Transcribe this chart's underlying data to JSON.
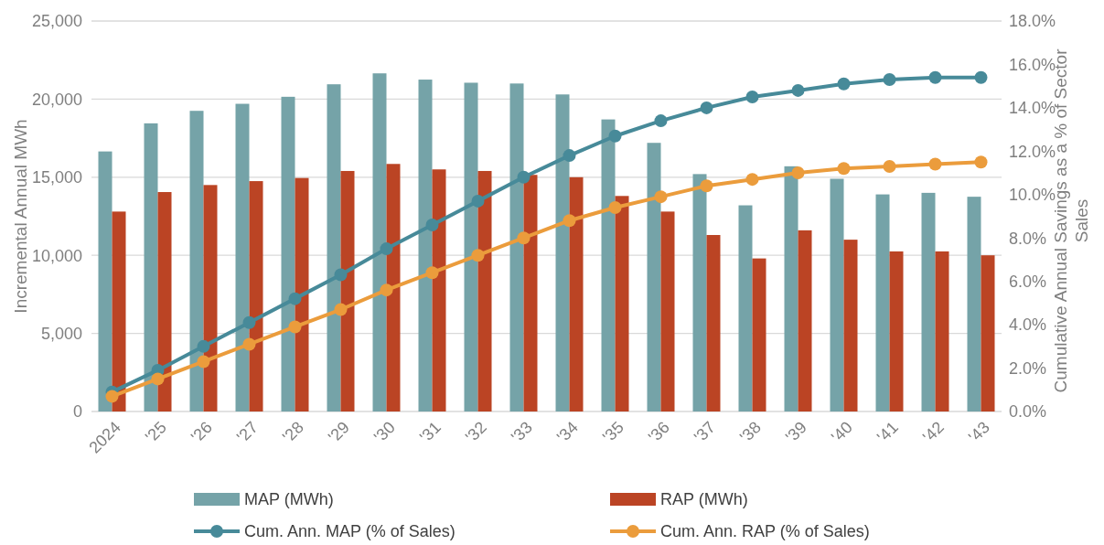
{
  "chart_data": {
    "type": "bar",
    "xlabel": null,
    "ylabel": "Incremental Annual MWh",
    "y2label": "Cumulative Annual Savings as a % of Sector Sales",
    "categories": [
      "2024",
      "'25",
      "'26",
      "'27",
      "'28",
      "'29",
      "'30",
      "'31",
      "'32",
      "'33",
      "'34",
      "'35",
      "'36",
      "'37",
      "'38",
      "'39",
      "'40",
      "'41",
      "'42",
      "'43"
    ],
    "series": [
      {
        "name": "MAP (MWh)",
        "color": "#75a3a8",
        "values": [
          16650,
          18450,
          19250,
          19700,
          20150,
          20950,
          21650,
          21250,
          21050,
          21000,
          20300,
          18700,
          17200,
          15200,
          13200,
          15700,
          14900,
          13900,
          14000,
          13750
        ]
      },
      {
        "name": "RAP (MWh)",
        "color": "#bb4424",
        "values": [
          12800,
          14050,
          14500,
          14750,
          14950,
          15400,
          15850,
          15500,
          15400,
          15150,
          15000,
          13800,
          12800,
          11300,
          9800,
          11600,
          11000,
          10250,
          10250,
          10000
        ]
      },
      {
        "name": "Cum. Ann. MAP (% of Sales)",
        "type": "line",
        "axis": "y2",
        "color": "#478a99",
        "values": [
          0.9,
          1.9,
          3.0,
          4.1,
          5.2,
          6.3,
          7.5,
          8.6,
          9.7,
          10.8,
          11.8,
          12.7,
          13.4,
          14.0,
          14.5,
          14.8,
          15.1,
          15.3,
          15.4,
          15.4
        ]
      },
      {
        "name": "Cum. Ann. RAP (% of Sales)",
        "type": "line",
        "axis": "y2",
        "color": "#eb9c3c",
        "values": [
          0.7,
          1.5,
          2.3,
          3.1,
          3.9,
          4.7,
          5.6,
          6.4,
          7.2,
          8.0,
          8.8,
          9.4,
          9.9,
          10.4,
          10.7,
          11.0,
          11.2,
          11.3,
          11.4,
          11.5
        ]
      }
    ],
    "ylim": [
      0,
      25000
    ],
    "yticks": [
      {
        "value": 0,
        "label": "0"
      },
      {
        "value": 5000,
        "label": "5,000"
      },
      {
        "value": 10000,
        "label": "10,000"
      },
      {
        "value": 15000,
        "label": "15,000"
      },
      {
        "value": 20000,
        "label": "20,000"
      },
      {
        "value": 25000,
        "label": "25,000"
      }
    ],
    "y2lim": [
      0,
      18
    ],
    "y2ticks": [
      {
        "value": 0,
        "label": "0.0%"
      },
      {
        "value": 2,
        "label": "2.0%"
      },
      {
        "value": 4,
        "label": "4.0%"
      },
      {
        "value": 6,
        "label": "6.0%"
      },
      {
        "value": 8,
        "label": "8.0%"
      },
      {
        "value": 10,
        "label": "10.0%"
      },
      {
        "value": 12,
        "label": "12.0%"
      },
      {
        "value": 14,
        "label": "14.0%"
      },
      {
        "value": 16,
        "label": "16.0%"
      },
      {
        "value": 18,
        "label": "18.0%"
      }
    ],
    "grid": "y",
    "legend": "bottom",
    "marker": "circle",
    "line_style": "solid"
  }
}
